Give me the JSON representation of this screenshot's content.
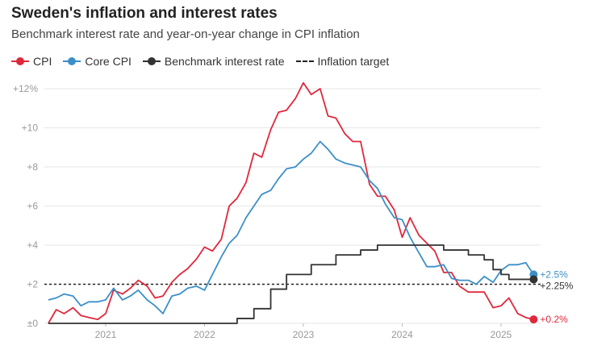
{
  "header": {
    "title": "Sweden's inflation and interest rates",
    "subtitle": "Benchmark interest rate and year-on-year change in CPI inflation"
  },
  "colors": {
    "cpi": "#e0283c",
    "core_cpi": "#3b8fc9",
    "benchmark_rate": "#333333",
    "inflation_target": "#222222",
    "axis_text": "#999999",
    "grid": "#e6e6e6"
  },
  "chart_data": {
    "type": "line",
    "title": "Sweden's inflation and interest rates",
    "subtitle": "Benchmark interest rate and year-on-year change in CPI inflation",
    "xlabel": "",
    "ylabel": "",
    "xlim": [
      2020.38,
      2025.4
    ],
    "ylim": [
      0,
      12
    ],
    "grid": true,
    "legend_position": "top-left",
    "x_ticks": [
      2021,
      2022,
      2023,
      2024,
      2025
    ],
    "x_tick_labels": [
      "2021",
      "2022",
      "2023",
      "2024",
      "2025"
    ],
    "y_ticks": [
      0,
      2,
      4,
      6,
      8,
      10,
      12
    ],
    "y_tick_labels": [
      "±0",
      "+2",
      "+4",
      "+6",
      "+8",
      "+10",
      "+12%"
    ],
    "inflation_target": {
      "name": "Inflation target",
      "value": 2
    },
    "series": [
      {
        "name": "CPI",
        "key": "cpi",
        "end_label": "+0.2%",
        "x": [
          2020.42,
          2020.5,
          2020.58,
          2020.67,
          2020.75,
          2020.83,
          2020.92,
          2021.0,
          2021.08,
          2021.17,
          2021.25,
          2021.33,
          2021.42,
          2021.5,
          2021.58,
          2021.67,
          2021.75,
          2021.83,
          2021.92,
          2022.0,
          2022.08,
          2022.17,
          2022.25,
          2022.33,
          2022.42,
          2022.5,
          2022.58,
          2022.67,
          2022.75,
          2022.83,
          2022.92,
          2023.0,
          2023.08,
          2023.17,
          2023.25,
          2023.33,
          2023.42,
          2023.5,
          2023.58,
          2023.67,
          2023.75,
          2023.83,
          2023.92,
          2024.0,
          2024.08,
          2024.17,
          2024.25,
          2024.33,
          2024.42,
          2024.5,
          2024.58,
          2024.67,
          2024.75,
          2024.83,
          2024.92,
          2025.0,
          2025.08,
          2025.17,
          2025.25,
          2025.33
        ],
        "values": [
          0.0,
          0.7,
          0.5,
          0.8,
          0.4,
          0.3,
          0.2,
          0.5,
          1.7,
          1.5,
          1.8,
          2.2,
          1.9,
          1.3,
          1.4,
          2.1,
          2.5,
          2.8,
          3.3,
          3.9,
          3.7,
          4.3,
          6.0,
          6.4,
          7.2,
          8.7,
          8.5,
          9.9,
          10.8,
          10.9,
          11.5,
          12.3,
          11.7,
          12.0,
          10.6,
          10.5,
          9.7,
          9.3,
          9.3,
          7.1,
          6.5,
          6.5,
          5.8,
          4.4,
          5.4,
          4.5,
          4.1,
          3.7,
          2.6,
          2.6,
          1.9,
          1.6,
          1.6,
          1.6,
          0.8,
          0.9,
          1.3,
          0.5,
          0.3,
          0.2
        ]
      },
      {
        "name": "Core CPI",
        "key": "core_cpi",
        "end_label": "+2.5%",
        "x": [
          2020.42,
          2020.5,
          2020.58,
          2020.67,
          2020.75,
          2020.83,
          2020.92,
          2021.0,
          2021.08,
          2021.17,
          2021.25,
          2021.33,
          2021.42,
          2021.5,
          2021.58,
          2021.67,
          2021.75,
          2021.83,
          2021.92,
          2022.0,
          2022.08,
          2022.17,
          2022.25,
          2022.33,
          2022.42,
          2022.5,
          2022.58,
          2022.67,
          2022.75,
          2022.83,
          2022.92,
          2023.0,
          2023.08,
          2023.17,
          2023.25,
          2023.33,
          2023.42,
          2023.5,
          2023.58,
          2023.67,
          2023.75,
          2023.83,
          2023.92,
          2024.0,
          2024.08,
          2024.17,
          2024.25,
          2024.33,
          2024.42,
          2024.5,
          2024.58,
          2024.67,
          2024.75,
          2024.83,
          2024.92,
          2025.0,
          2025.08,
          2025.17,
          2025.25,
          2025.33
        ],
        "values": [
          1.2,
          1.3,
          1.5,
          1.4,
          0.9,
          1.1,
          1.1,
          1.2,
          1.8,
          1.2,
          1.4,
          1.7,
          1.2,
          0.9,
          0.5,
          1.4,
          1.5,
          1.8,
          1.9,
          1.7,
          2.5,
          3.4,
          4.1,
          4.5,
          5.4,
          6.0,
          6.6,
          6.8,
          7.4,
          7.9,
          8.0,
          8.4,
          8.7,
          9.3,
          8.9,
          8.4,
          8.2,
          8.1,
          8.0,
          7.3,
          6.9,
          6.1,
          5.4,
          5.3,
          4.4,
          3.6,
          2.9,
          2.9,
          3.0,
          2.3,
          2.2,
          2.2,
          2.0,
          2.4,
          2.1,
          2.7,
          3.0,
          3.0,
          3.1,
          2.5
        ]
      },
      {
        "name": "Benchmark interest rate",
        "key": "benchmark_rate",
        "end_label": "+2.25%",
        "step": true,
        "x": [
          2020.42,
          2022.33,
          2022.5,
          2022.67,
          2022.83,
          2023.08,
          2023.33,
          2023.58,
          2023.75,
          2024.25,
          2024.42,
          2024.67,
          2024.83,
          2024.92,
          2025.0,
          2025.08,
          2025.33
        ],
        "values": [
          0,
          0.25,
          0.75,
          1.75,
          2.5,
          3.0,
          3.5,
          3.75,
          4.0,
          4.0,
          3.75,
          3.5,
          3.25,
          2.75,
          2.5,
          2.25,
          2.25
        ]
      }
    ]
  }
}
